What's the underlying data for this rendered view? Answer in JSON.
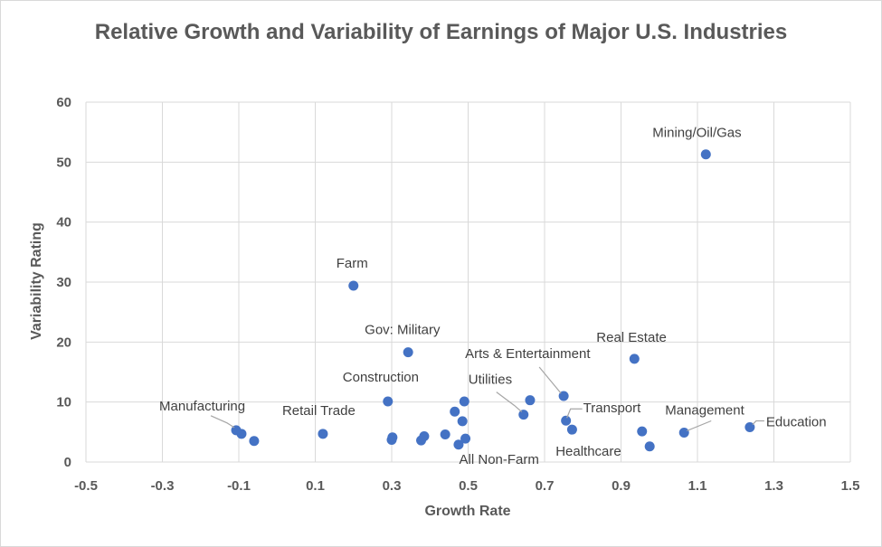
{
  "chart_data": {
    "type": "scatter",
    "title": "Relative Growth and Variability of Earnings of Major U.S. Industries",
    "xlabel": "Growth Rate",
    "ylabel": "Variability Rating",
    "xlim": [
      -0.5,
      1.5
    ],
    "ylim": [
      0,
      60
    ],
    "xticks": [
      "-0.5",
      "-0.3",
      "-0.1",
      "0.1",
      "0.3",
      "0.5",
      "0.7",
      "0.9",
      "1.1",
      "1.3",
      "1.5"
    ],
    "yticks": [
      "0",
      "10",
      "20",
      "30",
      "40",
      "50",
      "60"
    ],
    "grid": true,
    "marker_color": "#4472c4",
    "points": [
      {
        "x": -0.107,
        "y": 5.3,
        "label": "Manufacturing"
      },
      {
        "x": -0.093,
        "y": 4.7
      },
      {
        "x": -0.06,
        "y": 3.5
      },
      {
        "x": 0.12,
        "y": 4.7,
        "label": "Retail Trade"
      },
      {
        "x": 0.2,
        "y": 29.4,
        "label": "Farm"
      },
      {
        "x": 0.29,
        "y": 10.1,
        "label": "Construction"
      },
      {
        "x": 0.3,
        "y": 3.7
      },
      {
        "x": 0.302,
        "y": 4.1
      },
      {
        "x": 0.343,
        "y": 18.3,
        "label": "Gov: Military"
      },
      {
        "x": 0.377,
        "y": 3.6
      },
      {
        "x": 0.385,
        "y": 4.3
      },
      {
        "x": 0.44,
        "y": 4.6
      },
      {
        "x": 0.465,
        "y": 8.4
      },
      {
        "x": 0.475,
        "y": 2.9
      },
      {
        "x": 0.485,
        "y": 6.8
      },
      {
        "x": 0.49,
        "y": 10.1
      },
      {
        "x": 0.493,
        "y": 3.9,
        "label": "All Non-Farm"
      },
      {
        "x": 0.645,
        "y": 7.9,
        "label": "Utilities"
      },
      {
        "x": 0.662,
        "y": 10.3
      },
      {
        "x": 0.75,
        "y": 11.0,
        "label": "Arts & Entertainment"
      },
      {
        "x": 0.756,
        "y": 6.9,
        "label": "Transport"
      },
      {
        "x": 0.772,
        "y": 5.4
      },
      {
        "x": 0.935,
        "y": 17.2,
        "label": "Real Estate"
      },
      {
        "x": 0.955,
        "y": 5.1
      },
      {
        "x": 0.975,
        "y": 2.6,
        "label": "Healthcare"
      },
      {
        "x": 1.065,
        "y": 4.9,
        "label": "Management"
      },
      {
        "x": 1.122,
        "y": 51.3,
        "label": "Mining/Oil/Gas"
      },
      {
        "x": 1.237,
        "y": 5.8,
        "label": "Education"
      }
    ]
  }
}
